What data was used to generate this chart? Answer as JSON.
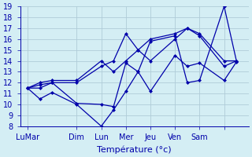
{
  "background_color": "#d4eef4",
  "grid_color": "#b0ccd8",
  "line_color": "#0000aa",
  "xlabel": "Température (°c)",
  "ylim": [
    8,
    19
  ],
  "yticks": [
    8,
    9,
    10,
    11,
    12,
    13,
    14,
    15,
    16,
    17,
    18,
    19
  ],
  "axis_fontsize": 7,
  "xtick_positions": [
    0,
    2,
    3,
    4,
    5,
    6,
    7,
    8
  ],
  "xtick_labels": [
    "LuMar",
    "Dim",
    "Lun",
    "Mer",
    "Jeu",
    "Ven",
    "Sam",
    ""
  ],
  "series": [
    [
      11.5,
      10.5,
      11.1,
      10.0,
      8.0,
      9.5,
      11.2,
      13.0,
      15.8,
      16.3,
      12.0,
      12.2,
      19.0,
      14.0
    ],
    [
      11.5,
      11.8,
      12.0,
      12.0,
      13.5,
      14.0,
      16.5,
      15.0,
      14.0,
      16.0,
      17.0,
      16.3,
      13.5,
      14.0
    ],
    [
      11.5,
      11.5,
      12.0,
      10.1,
      10.0,
      9.8,
      13.8,
      13.0,
      11.2,
      14.5,
      13.5,
      13.8,
      12.2,
      13.9
    ],
    [
      11.5,
      12.0,
      12.2,
      12.2,
      14.0,
      13.0,
      14.0,
      15.0,
      16.0,
      16.5,
      17.0,
      16.5,
      14.0,
      14.0
    ]
  ],
  "x_positions": [
    0,
    0.5,
    1,
    2,
    3,
    3.5,
    4,
    4.5,
    5,
    6,
    6.5,
    7,
    8,
    8.5
  ]
}
